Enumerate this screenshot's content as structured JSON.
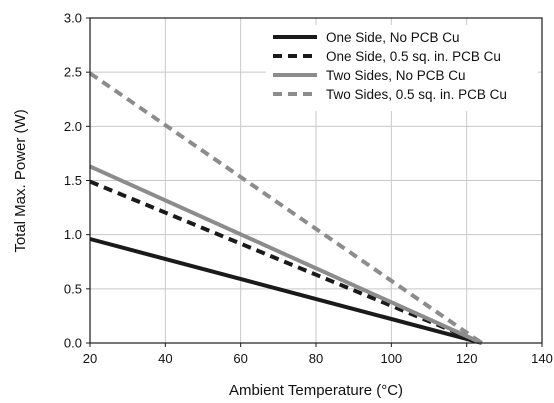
{
  "chart_data": {
    "type": "line",
    "title": "",
    "xlabel": "Ambient Temperature (°C)",
    "ylabel": "Total Max. Power (W)",
    "xlim": [
      20,
      140
    ],
    "ylim": [
      0,
      3.0
    ],
    "xticks": [
      20,
      40,
      60,
      80,
      100,
      120,
      140
    ],
    "xtick_labels": [
      "20",
      "40",
      "60",
      "80",
      "100",
      "120",
      "140"
    ],
    "yticks": [
      0,
      0.5,
      1.0,
      1.5,
      2.0,
      2.5,
      3.0
    ],
    "ytick_labels": [
      "0.0",
      "0.5",
      "1.0",
      "1.5",
      "2.0",
      "2.5",
      "3.0"
    ],
    "grid": true,
    "legend_position": "top-right",
    "series": [
      {
        "name": "One Side, No PCB Cu",
        "color": "#1a1a1a",
        "style": "solid",
        "x": [
          20,
          124
        ],
        "y": [
          0.96,
          0.0
        ]
      },
      {
        "name": "One Side, 0.5 sq. in. PCB Cu",
        "color": "#1a1a1a",
        "style": "dashed",
        "x": [
          20,
          124
        ],
        "y": [
          1.49,
          0.0
        ]
      },
      {
        "name": "Two Sides, No PCB Cu",
        "color": "#8c8c8c",
        "style": "solid",
        "x": [
          20,
          124
        ],
        "y": [
          1.63,
          0.0
        ]
      },
      {
        "name": "Two Sides, 0.5 sq. in. PCB Cu",
        "color": "#8c8c8c",
        "style": "dashed",
        "x": [
          20,
          124
        ],
        "y": [
          2.49,
          0.0
        ]
      }
    ]
  }
}
